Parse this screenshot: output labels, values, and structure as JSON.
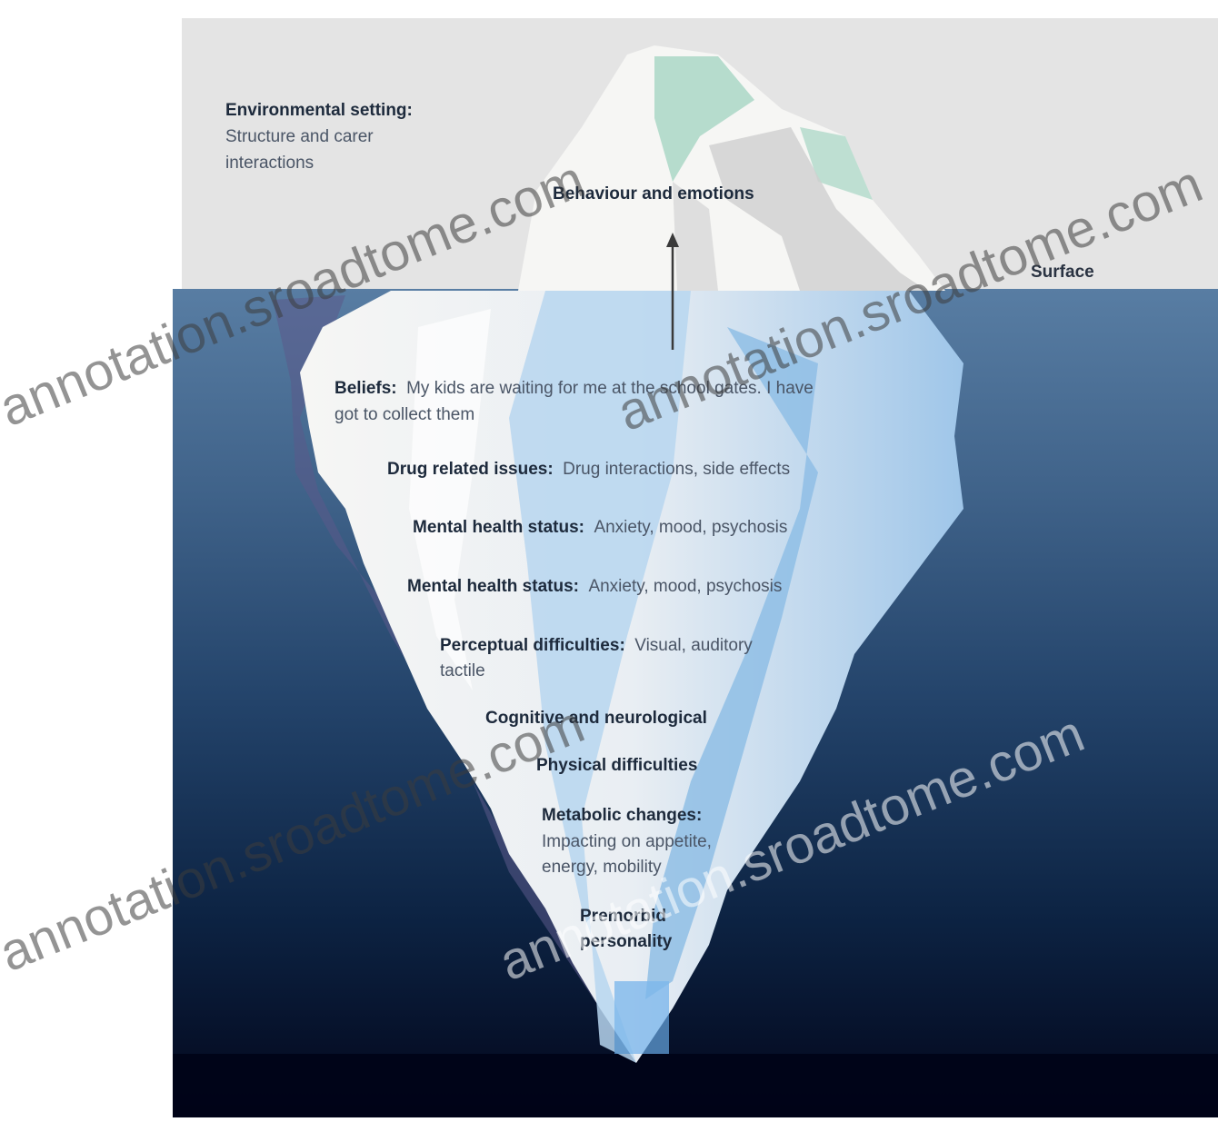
{
  "environment": {
    "title": "Environmental setting:",
    "desc_line1": "Structure and carer",
    "desc_line2": "interactions"
  },
  "behaviour_label": "Behaviour and emotions",
  "surface_label": "Surface",
  "layers": [
    {
      "title": "Beliefs:",
      "desc": "My kids are waiting for me at the school gates. I have",
      "desc2": "got to collect them"
    },
    {
      "title": "Drug related issues:",
      "desc": "Drug interactions, side effects"
    },
    {
      "title": "Mental health status:",
      "desc": "Anxiety, mood, psychosis"
    },
    {
      "title": "Mental health status:",
      "desc": "Anxiety, mood, psychosis"
    },
    {
      "title": "Perceptual difficulties:",
      "desc": "Visual, auditory",
      "desc2": "tactile"
    },
    {
      "title": "Cognitive and neurological",
      "desc": ""
    },
    {
      "title": "Physical difficulties",
      "desc": ""
    },
    {
      "title": "Metabolic changes:",
      "desc": "Impacting on appetite,",
      "desc2": "energy, mobility"
    },
    {
      "title": "Premorbid",
      "desc": "personality"
    }
  ],
  "watermark": "annotation.sroadtome.com",
  "colors": {
    "sky": "#e4e4e4",
    "water_top": "#587da3",
    "water_bottom": "#02061b",
    "ice": "#f4f4f2",
    "ice_shadow": "#a9cdeb"
  }
}
